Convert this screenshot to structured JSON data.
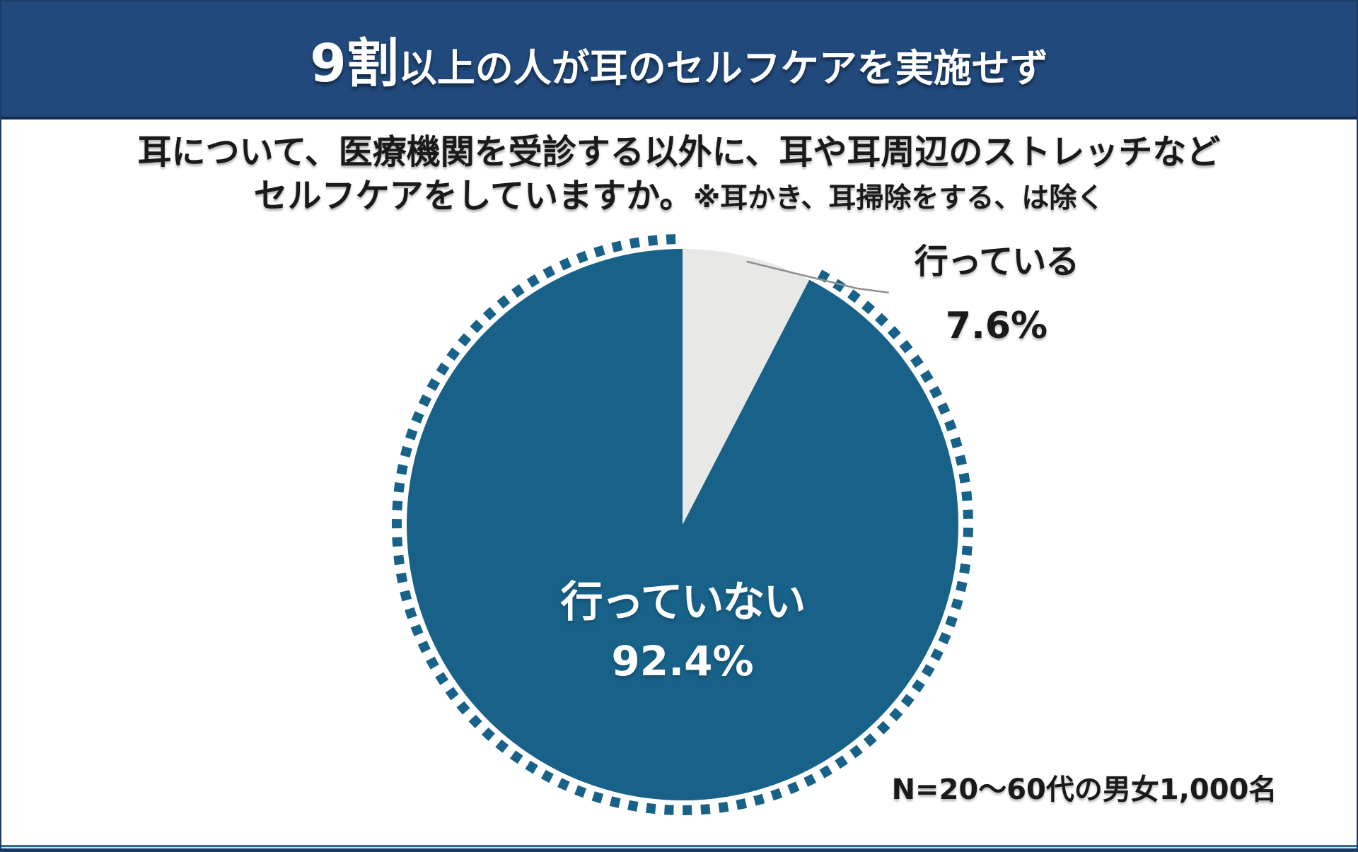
{
  "header": {
    "title_emphasis": "9割",
    "title_rest": "以上の人が耳のセルフケアを実施せず"
  },
  "question": {
    "line1": "耳について、医療機関を受診する以外に、耳や耳周辺のストレッチなど",
    "line2_main": "セルフケアをしていますか。",
    "line2_note": "※耳かき、耳掃除をする、は除く"
  },
  "chart_data": {
    "type": "pie",
    "title": "9割以上の人が耳のセルフケアを実施せず",
    "start_angle_deg": 0,
    "direction": "clockwise",
    "legend": "none",
    "decoration": "dashed ring encircling the majority slice, gap over the minority slice",
    "sample_note": "N=20〜60代の男女1,000名",
    "slices": [
      {
        "label": "行っていない",
        "value": 92.4,
        "display": "92.4%",
        "color": "#186289",
        "label_placement": "inside",
        "ring": true
      },
      {
        "label": "行っている",
        "value": 7.6,
        "display": "7.6%",
        "color": "#E8E8E6",
        "label_placement": "outside-right",
        "ring": false
      }
    ]
  },
  "colors": {
    "header_bg": "#21497B",
    "header_border": "#122B50",
    "canvas_border": "#1B3C66",
    "accent_teal": "#186289",
    "slice_gray": "#E8E8E6",
    "leader_line": "#8F8F8F",
    "text_dark": "#1A1A1A",
    "text_light": "#FFFFFF"
  }
}
